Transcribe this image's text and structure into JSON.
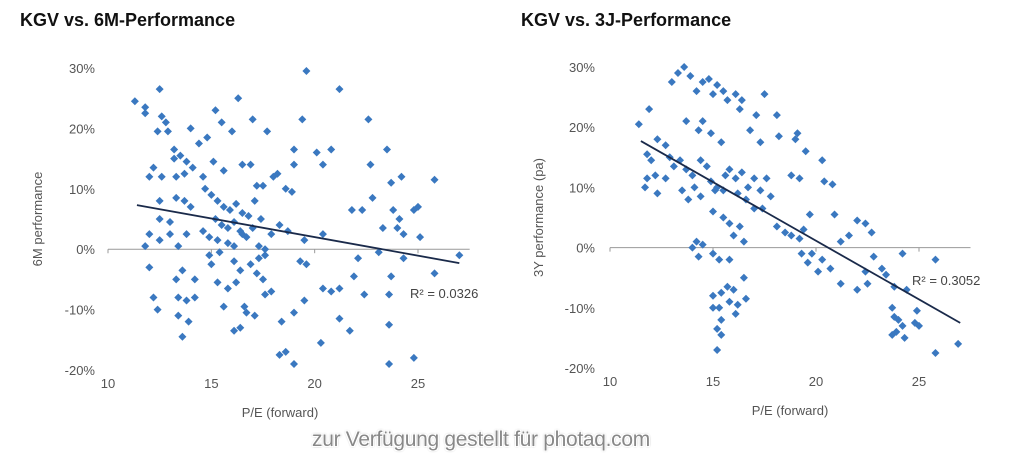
{
  "watermark": "zur Verfügung gestellt für photaq.com",
  "colors": {
    "marker": "#3a78c0",
    "trend": "#1a2a4a",
    "axis": "#999999"
  },
  "chart_data": [
    {
      "type": "scatter",
      "title": "KGV vs. 6M-Performance",
      "xlabel": "P/E (forward)",
      "ylabel": "6M performance",
      "xlim": [
        10,
        27.5
      ],
      "ylim": [
        -20,
        30
      ],
      "xticks": [
        10,
        15,
        20,
        25
      ],
      "xtick_labels": [
        "10",
        "15",
        "20",
        "25"
      ],
      "yticks": [
        -20,
        -10,
        0,
        10,
        20,
        30
      ],
      "ytick_labels": [
        "-20%",
        "-10%",
        "0%",
        "10%",
        "20%",
        "30%"
      ],
      "trendline": {
        "x": [
          11.4,
          27
        ],
        "y": [
          7.3,
          -2.3
        ]
      },
      "r2_label": "R² = 0.0326",
      "points": [
        [
          11.3,
          24.5
        ],
        [
          11.8,
          23.5
        ],
        [
          11.8,
          22.5
        ],
        [
          12.5,
          26.5
        ],
        [
          12.6,
          22
        ],
        [
          12.8,
          21
        ],
        [
          12.4,
          19.5
        ],
        [
          12.9,
          19.5
        ],
        [
          14,
          20
        ],
        [
          14.4,
          17.5
        ],
        [
          14.8,
          18.5
        ],
        [
          15.2,
          23
        ],
        [
          15.5,
          21
        ],
        [
          16,
          19.5
        ],
        [
          16.3,
          25
        ],
        [
          17,
          21.5
        ],
        [
          17.7,
          19.5
        ],
        [
          19.6,
          29.5
        ],
        [
          19.4,
          21.5
        ],
        [
          21.2,
          26.5
        ],
        [
          22.6,
          21.5
        ],
        [
          13.2,
          16.5
        ],
        [
          13.5,
          15.5
        ],
        [
          13.8,
          14.5
        ],
        [
          13.2,
          15
        ],
        [
          14.1,
          13.5
        ],
        [
          12.2,
          13.5
        ],
        [
          12.0,
          12
        ],
        [
          12.6,
          12
        ],
        [
          13.3,
          12
        ],
        [
          13.7,
          12.5
        ],
        [
          14.6,
          12
        ],
        [
          15.1,
          14.5
        ],
        [
          15.6,
          13
        ],
        [
          16.5,
          14
        ],
        [
          16.9,
          14
        ],
        [
          17.2,
          10.5
        ],
        [
          17.5,
          10.5
        ],
        [
          18.0,
          12
        ],
        [
          18.2,
          12.5
        ],
        [
          18.6,
          10
        ],
        [
          18.9,
          9.5
        ],
        [
          19.0,
          16.5
        ],
        [
          19.0,
          14
        ],
        [
          20.1,
          16
        ],
        [
          20.4,
          14
        ],
        [
          20.8,
          16.5
        ],
        [
          22.7,
          14
        ],
        [
          23.5,
          16.5
        ],
        [
          23.7,
          11
        ],
        [
          24.2,
          12
        ],
        [
          25.8,
          11.5
        ],
        [
          12.5,
          8
        ],
        [
          13.3,
          8.5
        ],
        [
          13.7,
          8
        ],
        [
          14.0,
          7
        ],
        [
          14.7,
          10
        ],
        [
          15.0,
          9
        ],
        [
          15.3,
          8
        ],
        [
          15.6,
          7
        ],
        [
          15.9,
          6.5
        ],
        [
          16.2,
          7.5
        ],
        [
          16.5,
          6
        ],
        [
          16.8,
          5.5
        ],
        [
          17.1,
          8
        ],
        [
          17.4,
          5
        ],
        [
          15.2,
          5
        ],
        [
          15.5,
          4
        ],
        [
          15.8,
          3.5
        ],
        [
          16.1,
          4.5
        ],
        [
          16.4,
          3
        ],
        [
          16.7,
          2
        ],
        [
          17.0,
          3.5
        ],
        [
          14.6,
          3
        ],
        [
          14.9,
          2
        ],
        [
          15.3,
          1.5
        ],
        [
          15.8,
          1
        ],
        [
          16.1,
          0.5
        ],
        [
          16.5,
          2.5
        ],
        [
          17.3,
          0.5
        ],
        [
          17.6,
          0
        ],
        [
          17.9,
          2.5
        ],
        [
          18.3,
          4
        ],
        [
          18.7,
          3
        ],
        [
          19.5,
          1.5
        ],
        [
          20.4,
          2.5
        ],
        [
          21.8,
          6.5
        ],
        [
          22.3,
          6.5
        ],
        [
          22.8,
          8.5
        ],
        [
          23.3,
          3.5
        ],
        [
          23.8,
          6.5
        ],
        [
          24.0,
          3.5
        ],
        [
          24.1,
          5
        ],
        [
          24.3,
          2.5
        ],
        [
          24.8,
          6.5
        ],
        [
          25.0,
          7
        ],
        [
          25.1,
          2
        ],
        [
          12.5,
          5
        ],
        [
          13.0,
          4.5
        ],
        [
          12.0,
          2.5
        ],
        [
          12.5,
          1.5
        ],
        [
          13.0,
          2.5
        ],
        [
          13.4,
          0.5
        ],
        [
          13.8,
          2.5
        ],
        [
          11.8,
          0.5
        ],
        [
          12.0,
          -3
        ],
        [
          13.3,
          -5
        ],
        [
          13.6,
          -3.5
        ],
        [
          14.2,
          -5
        ],
        [
          14.9,
          -1
        ],
        [
          15.0,
          -2.5
        ],
        [
          15.4,
          -0.5
        ],
        [
          16.1,
          -2
        ],
        [
          16.4,
          -3.5
        ],
        [
          16.9,
          -2.5
        ],
        [
          17.3,
          -1.5
        ],
        [
          17.6,
          -1
        ],
        [
          15.3,
          -5.5
        ],
        [
          15.8,
          -6.5
        ],
        [
          16.2,
          -5.5
        ],
        [
          16.6,
          -9.5
        ],
        [
          17.2,
          -4
        ],
        [
          17.5,
          -5
        ],
        [
          17.6,
          -7.5
        ],
        [
          17.9,
          -7
        ],
        [
          12.2,
          -8
        ],
        [
          12.4,
          -10
        ],
        [
          13.4,
          -8
        ],
        [
          13.8,
          -8.5
        ],
        [
          14.2,
          -8
        ],
        [
          13.4,
          -11
        ],
        [
          13.9,
          -12
        ],
        [
          13.6,
          -14.5
        ],
        [
          15.6,
          -9.5
        ],
        [
          16.1,
          -13.5
        ],
        [
          16.4,
          -13
        ],
        [
          16.7,
          -10.5
        ],
        [
          17.1,
          -11
        ],
        [
          18.4,
          -12
        ],
        [
          18.3,
          -17.5
        ],
        [
          18.6,
          -17
        ],
        [
          19.0,
          -19
        ],
        [
          19.0,
          -10.5
        ],
        [
          19.3,
          -2
        ],
        [
          19.6,
          -2.5
        ],
        [
          19.5,
          -8.5
        ],
        [
          20.4,
          -6.5
        ],
        [
          20.8,
          -7
        ],
        [
          21.2,
          -6.5
        ],
        [
          21.2,
          -11.5
        ],
        [
          21.7,
          -13.5
        ],
        [
          20.3,
          -15.5
        ],
        [
          21.9,
          -4.5
        ],
        [
          22.1,
          -1.5
        ],
        [
          22.4,
          -7.5
        ],
        [
          23.1,
          -0.5
        ],
        [
          23.7,
          -4.5
        ],
        [
          23.6,
          -7.5
        ],
        [
          23.6,
          -12.5
        ],
        [
          23.6,
          -19
        ],
        [
          24.3,
          -1.5
        ],
        [
          24.8,
          -18
        ],
        [
          25.8,
          -4
        ],
        [
          27,
          -1
        ]
      ]
    },
    {
      "type": "scatter",
      "title": "KGV vs. 3J-Performance",
      "xlabel": "P/E (forward)",
      "ylabel": "3Y performance (pa)",
      "xlim": [
        10,
        27.5
      ],
      "ylim": [
        -20,
        30
      ],
      "xticks": [
        10,
        15,
        20,
        25
      ],
      "xtick_labels": [
        "10",
        "15",
        "20",
        "25"
      ],
      "yticks": [
        -20,
        -10,
        0,
        10,
        20,
        30
      ],
      "ytick_labels": [
        "-20%",
        "-10%",
        "0%",
        "10%",
        "20%",
        "30%"
      ],
      "trendline": {
        "x": [
          11.5,
          27
        ],
        "y": [
          17.7,
          -12.5
        ]
      },
      "r2_label": "R² = 0.3052",
      "points": [
        [
          11.4,
          20.5
        ],
        [
          11.9,
          23
        ],
        [
          13,
          27.5
        ],
        [
          13.3,
          29
        ],
        [
          13.6,
          30
        ],
        [
          13.9,
          28.5
        ],
        [
          14.2,
          26
        ],
        [
          14.5,
          27.5
        ],
        [
          14.8,
          28
        ],
        [
          15.0,
          25.5
        ],
        [
          15.2,
          27
        ],
        [
          15.5,
          26
        ],
        [
          15.7,
          24.5
        ],
        [
          16.1,
          25.5
        ],
        [
          16.3,
          23
        ],
        [
          16.4,
          24.5
        ],
        [
          17.1,
          22
        ],
        [
          17.5,
          25.5
        ],
        [
          18.1,
          22
        ],
        [
          13.7,
          21
        ],
        [
          14.3,
          19.5
        ],
        [
          14.5,
          21
        ],
        [
          14.9,
          19
        ],
        [
          15.4,
          17.5
        ],
        [
          16.8,
          19.5
        ],
        [
          17.3,
          17.5
        ],
        [
          18.2,
          18.5
        ],
        [
          19.0,
          18
        ],
        [
          19.1,
          19
        ],
        [
          19.5,
          16
        ],
        [
          20.3,
          14.5
        ],
        [
          20.4,
          11
        ],
        [
          20.8,
          10.5
        ],
        [
          18.8,
          12
        ],
        [
          19.2,
          11.5
        ],
        [
          11.8,
          15.5
        ],
        [
          12.0,
          14.5
        ],
        [
          12.3,
          18
        ],
        [
          12.7,
          17
        ],
        [
          12.9,
          15
        ],
        [
          11.8,
          11.5
        ],
        [
          12.2,
          12
        ],
        [
          11.7,
          10
        ],
        [
          12.3,
          9
        ],
        [
          12.7,
          11.5
        ],
        [
          13.1,
          13.5
        ],
        [
          13.4,
          14.5
        ],
        [
          13.7,
          13
        ],
        [
          14.0,
          12
        ],
        [
          14.4,
          14.5
        ],
        [
          14.7,
          13.5
        ],
        [
          14.9,
          11
        ],
        [
          15.2,
          10
        ],
        [
          15.5,
          9.5
        ],
        [
          15.8,
          13
        ],
        [
          16.1,
          11.5
        ],
        [
          16.4,
          12.5
        ],
        [
          16.7,
          10
        ],
        [
          17.0,
          11.5
        ],
        [
          17.3,
          9.5
        ],
        [
          17.6,
          11.5
        ],
        [
          13.5,
          9.5
        ],
        [
          13.8,
          8
        ],
        [
          14.1,
          10
        ],
        [
          14.4,
          8.5
        ],
        [
          15.1,
          9.5
        ],
        [
          15.6,
          12
        ],
        [
          16.2,
          9
        ],
        [
          16.6,
          8
        ],
        [
          17.0,
          6.5
        ],
        [
          17.4,
          6.5
        ],
        [
          17.8,
          8.5
        ],
        [
          15.0,
          6
        ],
        [
          15.5,
          5
        ],
        [
          15.8,
          4
        ],
        [
          16.0,
          2
        ],
        [
          16.3,
          3.5
        ],
        [
          16.5,
          1
        ],
        [
          18.1,
          3.5
        ],
        [
          18.5,
          2.5
        ],
        [
          18.8,
          2
        ],
        [
          19.2,
          1.5
        ],
        [
          19.4,
          3
        ],
        [
          19.7,
          5.5
        ],
        [
          20.9,
          5.5
        ],
        [
          21.2,
          1
        ],
        [
          21.6,
          2
        ],
        [
          22.0,
          4.5
        ],
        [
          22.4,
          4
        ],
        [
          22.7,
          2.5
        ],
        [
          14.0,
          0
        ],
        [
          14.2,
          1
        ],
        [
          14.5,
          0.5
        ],
        [
          14.3,
          -1.5
        ],
        [
          15.0,
          -1
        ],
        [
          15.3,
          -2
        ],
        [
          15.8,
          -2
        ],
        [
          16.5,
          -5
        ],
        [
          19.3,
          -1
        ],
        [
          19.8,
          -1
        ],
        [
          19.6,
          -2.5
        ],
        [
          20.3,
          -2
        ],
        [
          20.1,
          -4
        ],
        [
          20.7,
          -3.5
        ],
        [
          21.2,
          -6
        ],
        [
          22.0,
          -7
        ],
        [
          22.4,
          -4
        ],
        [
          22.5,
          -6
        ],
        [
          22.8,
          -1.5
        ],
        [
          23.2,
          -3.5
        ],
        [
          23.4,
          -4.5
        ],
        [
          23.8,
          -6.5
        ],
        [
          24.2,
          -1
        ],
        [
          24.4,
          -7
        ],
        [
          25.8,
          -2
        ],
        [
          15.0,
          -8
        ],
        [
          15.4,
          -7.5
        ],
        [
          15.7,
          -6.5
        ],
        [
          16.0,
          -7
        ],
        [
          15.3,
          -10
        ],
        [
          15.8,
          -9
        ],
        [
          16.2,
          -9.5
        ],
        [
          16.6,
          -8.5
        ],
        [
          15.0,
          -10
        ],
        [
          15.4,
          -12
        ],
        [
          15.2,
          -13.5
        ],
        [
          15.4,
          -14.5
        ],
        [
          15.2,
          -17
        ],
        [
          16.1,
          -11
        ],
        [
          23.7,
          -10
        ],
        [
          23.8,
          -11.5
        ],
        [
          24.0,
          -12
        ],
        [
          24.2,
          -13
        ],
        [
          23.9,
          -14
        ],
        [
          23.7,
          -14.5
        ],
        [
          24.3,
          -15
        ],
        [
          24.8,
          -12.5
        ],
        [
          25.0,
          -13
        ],
        [
          24.9,
          -10.5
        ],
        [
          25.8,
          -17.5
        ],
        [
          26.9,
          -16
        ]
      ]
    }
  ]
}
